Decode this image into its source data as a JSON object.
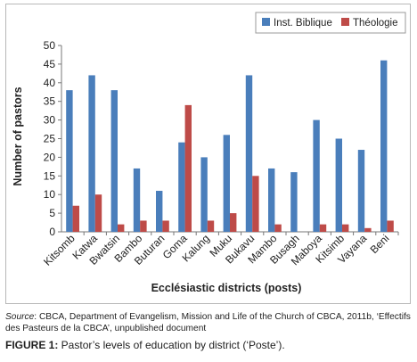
{
  "chart_data": {
    "type": "bar",
    "ylabel": "Number of pastors",
    "xlabel": "Ecclésiastic districts (posts)",
    "ylim": [
      0,
      50
    ],
    "yticks": [
      0,
      5,
      10,
      15,
      20,
      25,
      30,
      35,
      40,
      45,
      50
    ],
    "grid": false,
    "legend_position": "top-right",
    "categories": [
      "Kitsomb",
      "Katwa",
      "Bwatsin",
      "Bambo",
      "Buturan",
      "Goma",
      "Kalung",
      "Muku",
      "Bukavu",
      "Mambo",
      "Busagh",
      "Maboya",
      "Kitsimb",
      "Vayana",
      "Beni"
    ],
    "series": [
      {
        "name": "Inst. Biblique",
        "color": "#4a7ebb",
        "values": [
          38,
          42,
          38,
          17,
          11,
          24,
          20,
          26,
          42,
          17,
          16,
          30,
          25,
          22,
          46
        ]
      },
      {
        "name": "Théologie",
        "color": "#be4b48",
        "values": [
          7,
          10,
          2,
          3,
          3,
          34,
          3,
          5,
          15,
          2,
          0,
          2,
          2,
          1,
          3
        ]
      }
    ]
  },
  "source": {
    "label": "Source",
    "text": ": CBCA, Department of Evangelism, Mission and Life of the Church of CBCA, 2011b, ‘Effectifs des Pasteurs de la CBCA’, unpublished document"
  },
  "caption": {
    "label": "FIGURE 1:",
    "text": " Pastor’s levels of education by district (‘Poste’)."
  }
}
